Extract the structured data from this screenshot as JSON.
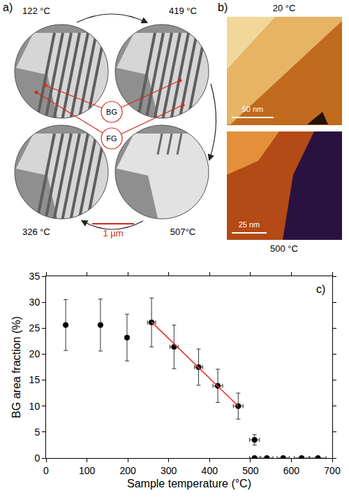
{
  "panel_a": {
    "label": "a)",
    "temperatures": [
      "122 °C",
      "419 °C",
      "326 °C",
      "507°C"
    ],
    "regions": [
      "BG",
      "FG"
    ],
    "scale_bar": "1 µm"
  },
  "panel_b": {
    "label": "b)",
    "top": {
      "temperature": "20 °C",
      "scale_bar": "50 nm"
    },
    "bottom": {
      "temperature": "500 °C",
      "scale_bar": "25 nm"
    }
  },
  "chart_data": {
    "type": "scatter",
    "annotations": [
      "c)"
    ],
    "x_label": "Sample temperature (°C)",
    "y_label": "BG area fraction (%)",
    "xlim": [
      0,
      700
    ],
    "xticks": [
      0,
      100,
      200,
      300,
      400,
      500,
      600,
      700
    ],
    "ylim": [
      0,
      35
    ],
    "yticks": [
      0,
      5,
      10,
      15,
      20,
      25,
      30,
      35
    ],
    "grid": false,
    "series": [
      {
        "type": "scatter",
        "color": "#000000",
        "marker": "circle",
        "x": [
          48,
          133,
          198,
          258,
          313,
          373,
          420,
          470,
          510,
          510,
          540,
          580,
          625,
          665
        ],
        "values": [
          25.6,
          25.6,
          23.2,
          26.1,
          21.4,
          17.5,
          13.9,
          10.0,
          3.5,
          0,
          0,
          0,
          0,
          0
        ],
        "y_error": [
          4.9,
          5.0,
          4.5,
          4.7,
          4.2,
          3.5,
          3.2,
          2.5,
          1.0,
          0,
          0,
          0,
          0,
          0
        ],
        "x_error": [
          0,
          0,
          0,
          10,
          10,
          10,
          12,
          12,
          12,
          12,
          15,
          15,
          18,
          20
        ]
      },
      {
        "type": "line",
        "color": "#e8312a",
        "line_style": "solid",
        "x": [
          258,
          470
        ],
        "values": [
          26.2,
          10.0
        ]
      }
    ]
  }
}
